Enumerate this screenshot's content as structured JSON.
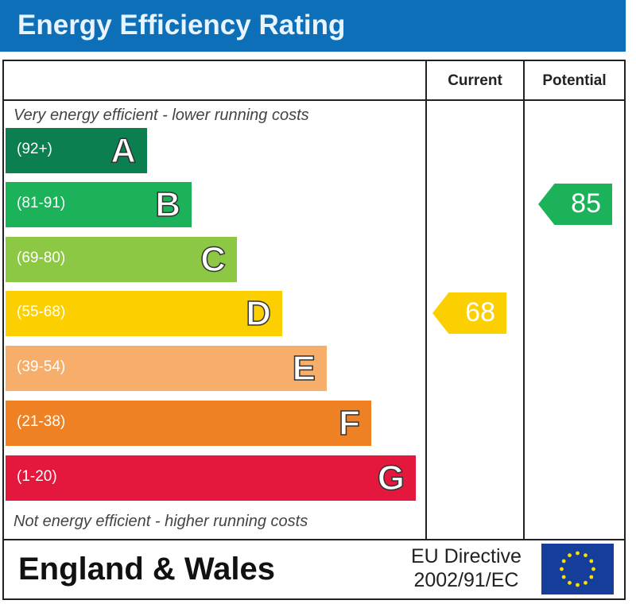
{
  "title": "Energy Efficiency Rating",
  "chart_data": {
    "type": "bar",
    "columns": [
      "Current",
      "Potential"
    ],
    "top_caption": "Very energy efficient - lower running costs",
    "bottom_caption": "Not energy efficient - higher running costs",
    "bands": [
      {
        "letter": "A",
        "range": "(92+)",
        "color": "#0b7f4f"
      },
      {
        "letter": "B",
        "range": "(81-91)",
        "color": "#1bb25a"
      },
      {
        "letter": "C",
        "range": "(69-80)",
        "color": "#8cc843"
      },
      {
        "letter": "D",
        "range": "(55-68)",
        "color": "#fccf00"
      },
      {
        "letter": "E",
        "range": "(39-54)",
        "color": "#f7ae6a"
      },
      {
        "letter": "F",
        "range": "(21-38)",
        "color": "#ef8125"
      },
      {
        "letter": "G",
        "range": "(1-20)",
        "color": "#e4173c"
      }
    ],
    "current": {
      "value": "68",
      "band": "D",
      "color": "#fccf00"
    },
    "potential": {
      "value": "85",
      "band": "B",
      "color": "#1bb25a"
    }
  },
  "footer": {
    "region": "England & Wales",
    "directive_line1": "EU Directive",
    "directive_line2": "2002/91/EC",
    "flag": "eu-flag-icon"
  }
}
